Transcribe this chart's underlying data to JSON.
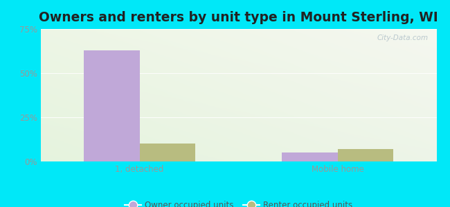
{
  "title": "Owners and renters by unit type in Mount Sterling, WI",
  "categories": [
    "1, detached",
    "Mobile home"
  ],
  "owner_values": [
    63,
    5
  ],
  "renter_values": [
    10,
    7
  ],
  "owner_color": "#c0a8d8",
  "renter_color": "#b8bc80",
  "ylim": [
    0,
    75
  ],
  "yticks": [
    0,
    25,
    50,
    75
  ],
  "ytick_labels": [
    "0%",
    "25%",
    "50%",
    "75%"
  ],
  "outer_color": "#00e8f8",
  "title_fontsize": 13.5,
  "legend_labels": [
    "Owner occupied units",
    "Renter occupied units"
  ],
  "bar_width": 0.28,
  "watermark": "City-Data.com",
  "tick_color": "#999999",
  "grid_color": "#e8e8e8"
}
